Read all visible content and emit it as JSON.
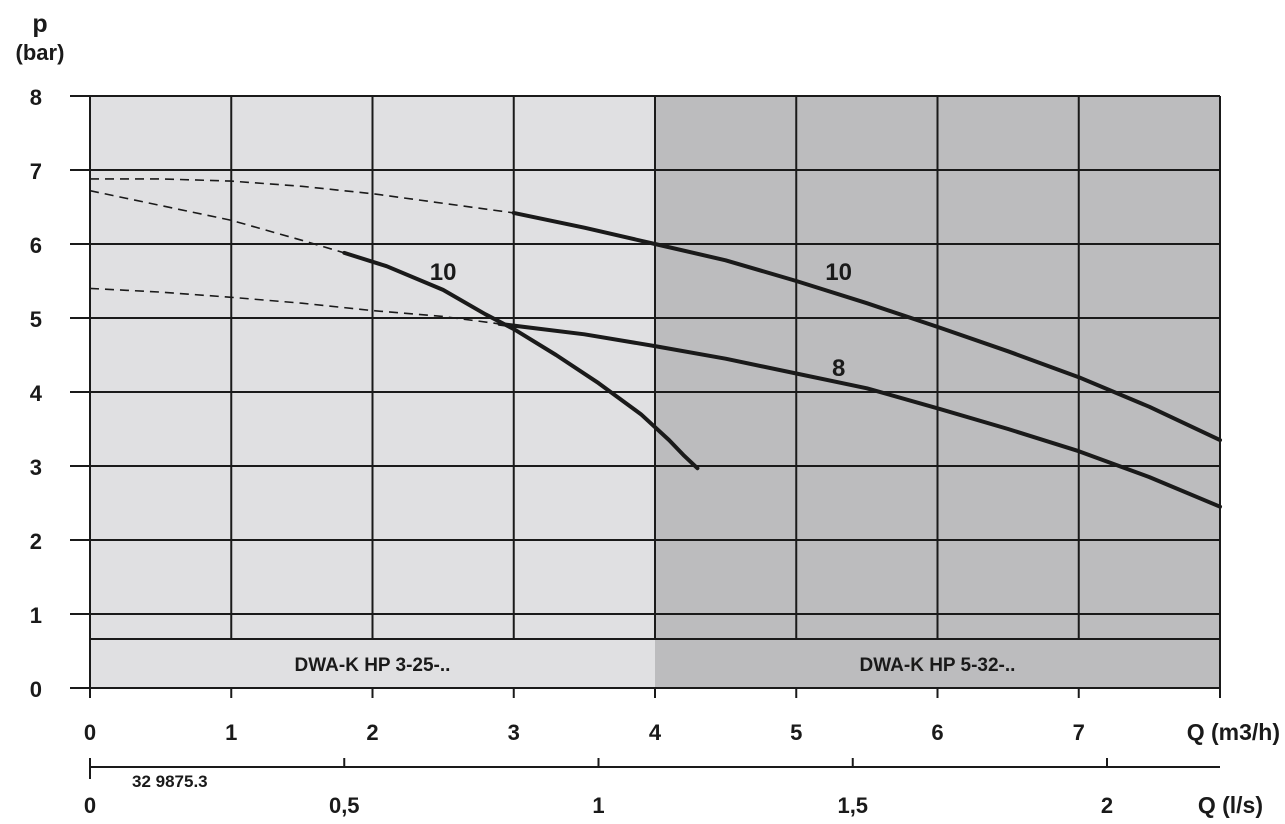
{
  "chart_data": {
    "type": "line",
    "y_axis": {
      "label": "p",
      "unit": "(bar)",
      "range": [
        0,
        8
      ],
      "ticks": [
        "0",
        "1",
        "2",
        "3",
        "4",
        "5",
        "6",
        "7",
        "8"
      ]
    },
    "x_axis": {
      "label": "Q (m3/h)",
      "range": [
        0,
        8
      ],
      "ticks": [
        "0",
        "1",
        "2",
        "3",
        "4",
        "5",
        "6",
        "7"
      ]
    },
    "x2_axis": {
      "label": "Q (l/s)",
      "ticks": [
        {
          "value": 0,
          "text": "0"
        },
        {
          "value": 0.5,
          "text": "0,5"
        },
        {
          "value": 1,
          "text": "1"
        },
        {
          "value": 1.5,
          "text": "1,5"
        },
        {
          "value": 2,
          "text": "2"
        }
      ]
    },
    "drawing_number": "32 9875.3",
    "zones": [
      {
        "label": "DWA-K HP 3-25-..",
        "x_range": [
          0,
          4
        ],
        "color": "#e0e0e2"
      },
      {
        "label": "DWA-K HP 5-32-..",
        "x_range": [
          4,
          8
        ],
        "color": "#bcbcbe"
      }
    ],
    "grid": true,
    "series": [
      {
        "name": "10",
        "group": "DWA-K HP 3-25-..",
        "label_at": [
          2.5,
          5.65
        ],
        "dashed": [
          [
            0,
            6.72
          ],
          [
            0.5,
            6.52
          ],
          [
            1.0,
            6.32
          ],
          [
            1.5,
            6.05
          ],
          [
            1.8,
            5.88
          ]
        ],
        "solid": [
          [
            1.8,
            5.88
          ],
          [
            2.1,
            5.7
          ],
          [
            2.5,
            5.38
          ],
          [
            2.8,
            5.05
          ],
          [
            3.0,
            4.85
          ],
          [
            3.3,
            4.5
          ],
          [
            3.6,
            4.12
          ],
          [
            3.9,
            3.7
          ],
          [
            4.1,
            3.35
          ],
          [
            4.2,
            3.15
          ],
          [
            4.3,
            2.97
          ]
        ]
      },
      {
        "name": "10",
        "group": "DWA-K HP 5-32-..",
        "label_at": [
          5.3,
          5.65
        ],
        "dashed": [
          [
            0,
            6.88
          ],
          [
            0.5,
            6.88
          ],
          [
            1.0,
            6.85
          ],
          [
            1.5,
            6.78
          ],
          [
            2.0,
            6.68
          ],
          [
            2.5,
            6.55
          ],
          [
            3.0,
            6.42
          ]
        ],
        "solid": [
          [
            3.0,
            6.42
          ],
          [
            3.5,
            6.22
          ],
          [
            4.0,
            6.0
          ],
          [
            4.5,
            5.78
          ],
          [
            5.0,
            5.5
          ],
          [
            5.5,
            5.2
          ],
          [
            6.0,
            4.88
          ],
          [
            6.5,
            4.55
          ],
          [
            7.0,
            4.2
          ],
          [
            7.5,
            3.8
          ],
          [
            8.0,
            3.35
          ]
        ]
      },
      {
        "name": "8",
        "group": "DWA-K HP 5-32-..",
        "label_at": [
          5.3,
          4.35
        ],
        "dashed": [
          [
            0,
            5.4
          ],
          [
            0.5,
            5.35
          ],
          [
            1.0,
            5.28
          ],
          [
            1.5,
            5.2
          ],
          [
            2.0,
            5.1
          ],
          [
            2.5,
            5.02
          ],
          [
            2.9,
            4.92
          ]
        ],
        "solid": [
          [
            2.9,
            4.92
          ],
          [
            3.5,
            4.78
          ],
          [
            4.0,
            4.62
          ],
          [
            4.5,
            4.45
          ],
          [
            5.0,
            4.25
          ],
          [
            5.5,
            4.05
          ],
          [
            6.0,
            3.78
          ],
          [
            6.5,
            3.5
          ],
          [
            7.0,
            3.2
          ],
          [
            7.5,
            2.85
          ],
          [
            8.0,
            2.45
          ]
        ]
      }
    ]
  }
}
